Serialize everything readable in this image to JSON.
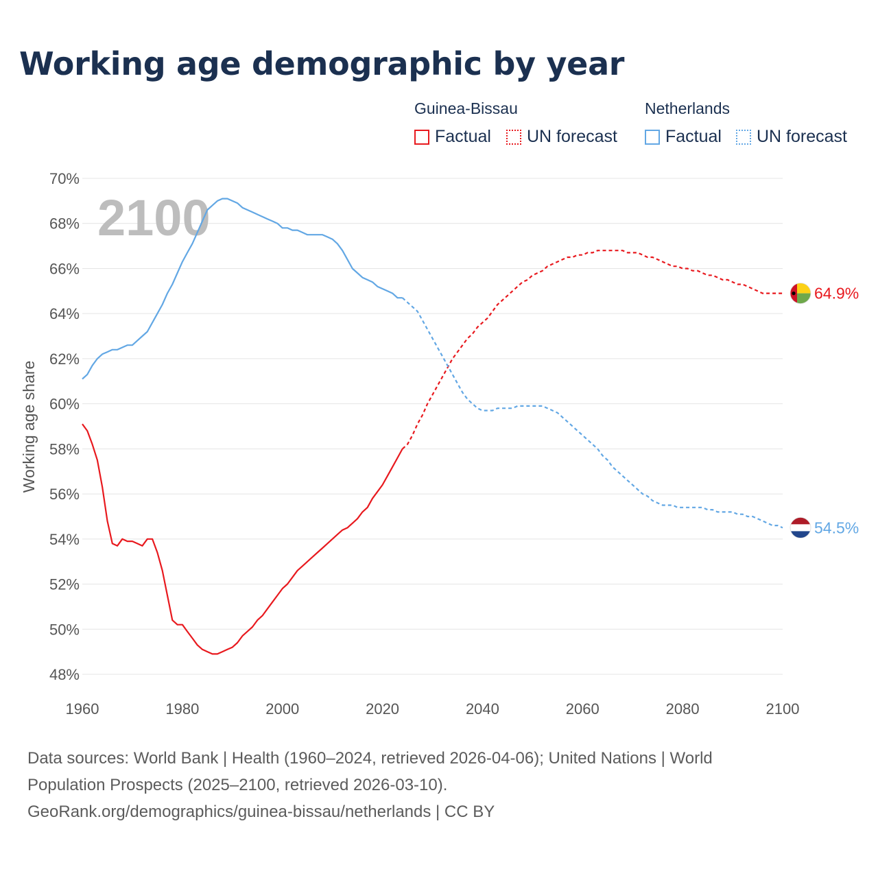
{
  "title": "Working age demographic by year",
  "legend": {
    "groups": [
      {
        "name": "Guinea-Bissau",
        "color": "#e8191e",
        "factual_label": "Factual",
        "forecast_label": "UN forecast"
      },
      {
        "name": "Netherlands",
        "color": "#62a7e4",
        "factual_label": "Factual",
        "forecast_label": "UN forecast"
      }
    ]
  },
  "footer": {
    "line1": "Data sources: World Bank | Health (1960–2024, retrieved 2026-04-06); United Nations | World",
    "line2": "Population Prospects (2025–2100, retrieved 2026-03-10).",
    "line3": "GeoRank.org/demographics/guinea-bissau/netherlands | CC BY"
  },
  "chart_data": {
    "type": "line",
    "title": "Working age demographic by year",
    "ylabel": "Working age share",
    "xlabel": "",
    "year_label": "2100",
    "xlim": [
      1960,
      2100
    ],
    "ylim": [
      48,
      70
    ],
    "x_ticks": [
      1960,
      1980,
      2000,
      2020,
      2040,
      2060,
      2080,
      2100
    ],
    "y_ticks": [
      48,
      50,
      52,
      54,
      56,
      58,
      60,
      62,
      64,
      66,
      68,
      70
    ],
    "y_tick_suffix": "%",
    "grid": true,
    "factual_end_year": 2024,
    "series": [
      {
        "name": "Guinea-Bissau",
        "color": "#e8191e",
        "end_label": "64.9%",
        "flag_colors": [
          "#ce1126",
          "#fcd116",
          "#6ea84b"
        ],
        "x": [
          1960,
          1961,
          1962,
          1963,
          1964,
          1965,
          1966,
          1967,
          1968,
          1969,
          1970,
          1971,
          1972,
          1973,
          1974,
          1975,
          1976,
          1977,
          1978,
          1979,
          1980,
          1981,
          1982,
          1983,
          1984,
          1985,
          1986,
          1987,
          1988,
          1989,
          1990,
          1991,
          1992,
          1993,
          1994,
          1995,
          1996,
          1997,
          1998,
          1999,
          2000,
          2001,
          2002,
          2003,
          2004,
          2005,
          2006,
          2007,
          2008,
          2009,
          2010,
          2011,
          2012,
          2013,
          2014,
          2015,
          2016,
          2017,
          2018,
          2019,
          2020,
          2021,
          2022,
          2023,
          2024,
          2025,
          2026,
          2027,
          2028,
          2029,
          2030,
          2031,
          2032,
          2033,
          2034,
          2035,
          2036,
          2037,
          2038,
          2039,
          2040,
          2041,
          2042,
          2043,
          2044,
          2045,
          2046,
          2047,
          2048,
          2049,
          2050,
          2051,
          2052,
          2053,
          2054,
          2055,
          2056,
          2057,
          2058,
          2059,
          2060,
          2061,
          2062,
          2063,
          2064,
          2065,
          2066,
          2067,
          2068,
          2069,
          2070,
          2071,
          2072,
          2073,
          2074,
          2075,
          2076,
          2077,
          2078,
          2079,
          2080,
          2081,
          2082,
          2083,
          2084,
          2085,
          2086,
          2087,
          2088,
          2089,
          2090,
          2091,
          2092,
          2093,
          2094,
          2095,
          2096,
          2097,
          2098,
          2099,
          2100
        ],
        "values": [
          59.1,
          58.8,
          58.2,
          57.5,
          56.3,
          54.8,
          53.8,
          53.7,
          54.0,
          53.9,
          53.9,
          53.8,
          53.7,
          54.0,
          54.0,
          53.4,
          52.6,
          51.5,
          50.4,
          50.2,
          50.2,
          49.9,
          49.6,
          49.3,
          49.1,
          49.0,
          48.9,
          48.9,
          49.0,
          49.1,
          49.2,
          49.4,
          49.7,
          49.9,
          50.1,
          50.4,
          50.6,
          50.9,
          51.2,
          51.5,
          51.8,
          52.0,
          52.3,
          52.6,
          52.8,
          53.0,
          53.2,
          53.4,
          53.6,
          53.8,
          54.0,
          54.2,
          54.4,
          54.5,
          54.7,
          54.9,
          55.2,
          55.4,
          55.8,
          56.1,
          56.4,
          56.8,
          57.2,
          57.6,
          58.0,
          58.2,
          58.6,
          59.1,
          59.5,
          60.0,
          60.4,
          60.8,
          61.2,
          61.6,
          62.0,
          62.3,
          62.6,
          62.9,
          63.1,
          63.4,
          63.6,
          63.8,
          64.1,
          64.4,
          64.6,
          64.8,
          65.0,
          65.2,
          65.4,
          65.5,
          65.7,
          65.8,
          65.9,
          66.1,
          66.2,
          66.3,
          66.4,
          66.5,
          66.5,
          66.6,
          66.6,
          66.7,
          66.7,
          66.8,
          66.8,
          66.8,
          66.8,
          66.8,
          66.8,
          66.7,
          66.7,
          66.7,
          66.6,
          66.5,
          66.5,
          66.4,
          66.3,
          66.2,
          66.1,
          66.1,
          66.0,
          66.0,
          65.9,
          65.9,
          65.8,
          65.7,
          65.7,
          65.6,
          65.5,
          65.5,
          65.4,
          65.3,
          65.3,
          65.2,
          65.1,
          65.0,
          64.9,
          64.9,
          64.9,
          64.9,
          64.9
        ]
      },
      {
        "name": "Netherlands",
        "color": "#62a7e4",
        "end_label": "54.5%",
        "flag_colors": [
          "#ae1c28",
          "#ffffff",
          "#21468b"
        ],
        "x": [
          1960,
          1961,
          1962,
          1963,
          1964,
          1965,
          1966,
          1967,
          1968,
          1969,
          1970,
          1971,
          1972,
          1973,
          1974,
          1975,
          1976,
          1977,
          1978,
          1979,
          1980,
          1981,
          1982,
          1983,
          1984,
          1985,
          1986,
          1987,
          1988,
          1989,
          1990,
          1991,
          1992,
          1993,
          1994,
          1995,
          1996,
          1997,
          1998,
          1999,
          2000,
          2001,
          2002,
          2003,
          2004,
          2005,
          2006,
          2007,
          2008,
          2009,
          2010,
          2011,
          2012,
          2013,
          2014,
          2015,
          2016,
          2017,
          2018,
          2019,
          2020,
          2021,
          2022,
          2023,
          2024,
          2025,
          2026,
          2027,
          2028,
          2029,
          2030,
          2031,
          2032,
          2033,
          2034,
          2035,
          2036,
          2037,
          2038,
          2039,
          2040,
          2041,
          2042,
          2043,
          2044,
          2045,
          2046,
          2047,
          2048,
          2049,
          2050,
          2051,
          2052,
          2053,
          2054,
          2055,
          2056,
          2057,
          2058,
          2059,
          2060,
          2061,
          2062,
          2063,
          2064,
          2065,
          2066,
          2067,
          2068,
          2069,
          2070,
          2071,
          2072,
          2073,
          2074,
          2075,
          2076,
          2077,
          2078,
          2079,
          2080,
          2081,
          2082,
          2083,
          2084,
          2085,
          2086,
          2087,
          2088,
          2089,
          2090,
          2091,
          2092,
          2093,
          2094,
          2095,
          2096,
          2097,
          2098,
          2099,
          2100
        ],
        "values": [
          61.1,
          61.3,
          61.7,
          62.0,
          62.2,
          62.3,
          62.4,
          62.4,
          62.5,
          62.6,
          62.6,
          62.8,
          63.0,
          63.2,
          63.6,
          64.0,
          64.4,
          64.9,
          65.3,
          65.8,
          66.3,
          66.7,
          67.1,
          67.6,
          68.1,
          68.6,
          68.8,
          69.0,
          69.1,
          69.1,
          69.0,
          68.9,
          68.7,
          68.6,
          68.5,
          68.4,
          68.3,
          68.2,
          68.1,
          68.0,
          67.8,
          67.8,
          67.7,
          67.7,
          67.6,
          67.5,
          67.5,
          67.5,
          67.5,
          67.4,
          67.3,
          67.1,
          66.8,
          66.4,
          66.0,
          65.8,
          65.6,
          65.5,
          65.4,
          65.2,
          65.1,
          65.0,
          64.9,
          64.7,
          64.7,
          64.5,
          64.3,
          64.1,
          63.7,
          63.3,
          62.9,
          62.5,
          62.1,
          61.7,
          61.3,
          60.9,
          60.5,
          60.2,
          60.0,
          59.8,
          59.7,
          59.7,
          59.7,
          59.8,
          59.8,
          59.8,
          59.8,
          59.9,
          59.9,
          59.9,
          59.9,
          59.9,
          59.9,
          59.8,
          59.7,
          59.6,
          59.4,
          59.2,
          59.0,
          58.8,
          58.6,
          58.4,
          58.2,
          58.0,
          57.7,
          57.5,
          57.2,
          57.0,
          56.8,
          56.6,
          56.4,
          56.2,
          56.0,
          55.9,
          55.7,
          55.6,
          55.5,
          55.5,
          55.5,
          55.4,
          55.4,
          55.4,
          55.4,
          55.4,
          55.4,
          55.3,
          55.3,
          55.2,
          55.2,
          55.2,
          55.2,
          55.1,
          55.1,
          55.0,
          55.0,
          54.9,
          54.8,
          54.7,
          54.6,
          54.6,
          54.5
        ]
      }
    ]
  }
}
